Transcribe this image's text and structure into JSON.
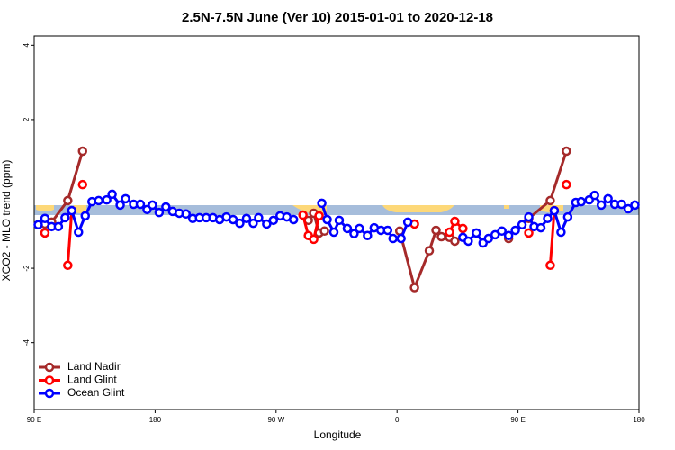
{
  "chart_data": {
    "type": "line",
    "title": "2.5N-7.5N June (Ver 10)   2015-01-01 to 2020-12-18",
    "x_label": "Longitude",
    "y_label": "XCO2 - MLO trend (ppm)",
    "xlim": [
      90,
      540
    ],
    "xticks": [
      {
        "value": 90,
        "label": "90 E"
      },
      {
        "value": 180,
        "label": "180"
      },
      {
        "value": 270,
        "label": "90 W"
      },
      {
        "value": 360,
        "label": "0"
      },
      {
        "value": 450,
        "label": "90 E"
      },
      {
        "value": 540,
        "label": "180"
      }
    ],
    "ylim": [
      -5.8,
      4.25
    ],
    "yticks": [
      -4,
      -2,
      2,
      4
    ],
    "legend": "lower left",
    "series": [
      {
        "name": "Land Nadir",
        "color": "#a52a2a",
        "x": [
          98,
          103,
          115,
          126,
          null,
          294,
          298,
          302,
          306,
          null,
          362,
          373,
          384,
          389,
          393,
          399,
          403,
          null,
          443,
          null,
          458,
          474,
          486
        ],
        "values": [
          -0.81,
          -0.76,
          -0.18,
          1.15,
          null,
          -0.71,
          -0.52,
          -1.05,
          -1.0,
          null,
          -1.0,
          -2.52,
          -1.53,
          -0.98,
          -1.15,
          -1.17,
          -1.27,
          null,
          -1.2,
          null,
          -0.66,
          -0.18,
          1.15
        ]
      },
      {
        "name": "Land Glint",
        "color": "#ff0000",
        "x": [
          98,
          null,
          115,
          118,
          null,
          126,
          null,
          290,
          294,
          298,
          302,
          null,
          373,
          null,
          399,
          403,
          409,
          null,
          458,
          null,
          474,
          477,
          null,
          486
        ],
        "values": [
          -1.05,
          null,
          -1.92,
          -0.45,
          null,
          0.25,
          null,
          -0.57,
          -1.12,
          -1.22,
          -0.59,
          null,
          -0.81,
          null,
          -1.03,
          -0.74,
          -0.93,
          null,
          -1.05,
          null,
          -1.92,
          -0.45,
          null,
          0.25
        ]
      },
      {
        "name": "Ocean Glint",
        "color": "#0000ff",
        "x": [
          93,
          98,
          103,
          108,
          113,
          118,
          123,
          128,
          133,
          138,
          144,
          148,
          154,
          158,
          164,
          169,
          174,
          178,
          183,
          188,
          193,
          198,
          203,
          208,
          213,
          218,
          223,
          228,
          233,
          238,
          243,
          248,
          253,
          257,
          263,
          268,
          273,
          278,
          283,
          null,
          304,
          308,
          313,
          317,
          323,
          328,
          332,
          338,
          343,
          348,
          353,
          357,
          363,
          368,
          null,
          409,
          413,
          419,
          424,
          428,
          433,
          438,
          443,
          448,
          453,
          458,
          462,
          467,
          472,
          477,
          482,
          487,
          493,
          497,
          503,
          507,
          512,
          517,
          522,
          527,
          532,
          537
        ],
        "values": [
          -0.83,
          -0.66,
          -0.88,
          -0.88,
          -0.64,
          -0.45,
          -1.03,
          -0.59,
          -0.21,
          -0.18,
          -0.16,
          -0.01,
          -0.3,
          -0.13,
          -0.28,
          -0.28,
          -0.42,
          -0.3,
          -0.5,
          -0.35,
          -0.47,
          -0.52,
          -0.54,
          -0.66,
          -0.64,
          -0.64,
          -0.64,
          -0.69,
          -0.62,
          -0.69,
          -0.79,
          -0.66,
          -0.79,
          -0.64,
          -0.81,
          -0.71,
          -0.59,
          -0.62,
          -0.69,
          null,
          -0.25,
          -0.69,
          -1.03,
          -0.71,
          -0.93,
          -1.07,
          -0.93,
          -1.12,
          -0.91,
          -0.98,
          -0.98,
          -1.2,
          -1.2,
          -0.76,
          null,
          -1.17,
          -1.27,
          -1.05,
          -1.32,
          -1.2,
          -1.1,
          -1.0,
          -1.12,
          -0.98,
          -0.83,
          -0.62,
          -0.88,
          -0.91,
          -0.66,
          -0.45,
          -1.03,
          -0.62,
          -0.23,
          -0.21,
          -0.16,
          -0.04,
          -0.3,
          -0.13,
          -0.28,
          -0.28,
          -0.4,
          -0.3
        ]
      }
    ]
  }
}
